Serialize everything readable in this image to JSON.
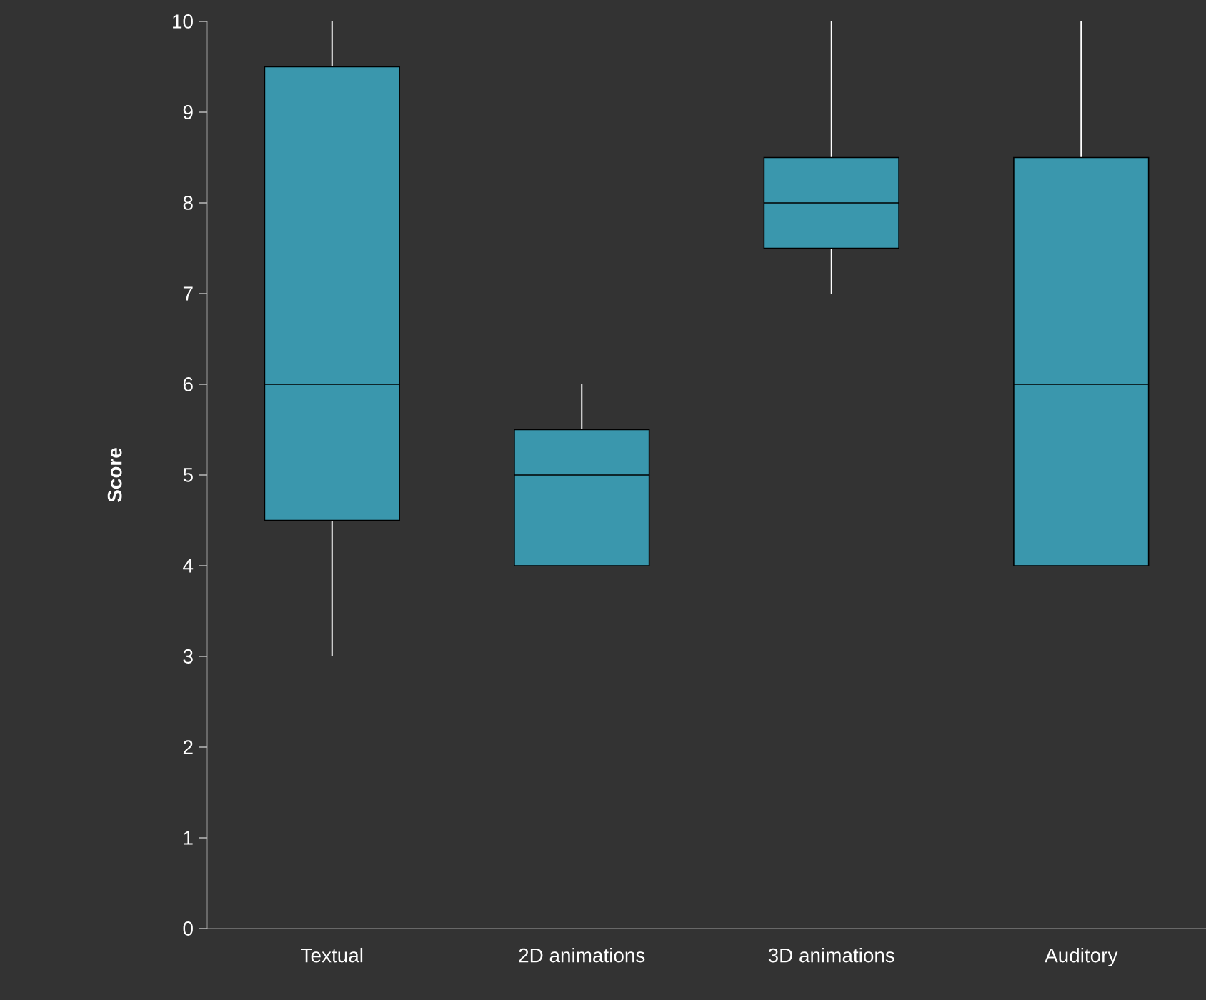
{
  "chart_data": {
    "type": "box",
    "ylabel": "Score",
    "categories": [
      "Textual",
      "2D animations",
      "3D animations",
      "Auditory"
    ],
    "boxes": [
      {
        "low": 3,
        "q1": 4.5,
        "median": 6,
        "q3": 9.5,
        "high": 10
      },
      {
        "low": 4,
        "q1": 4,
        "median": 5,
        "q3": 5.5,
        "high": 6
      },
      {
        "low": 7,
        "q1": 7.5,
        "median": 8,
        "q3": 8.5,
        "high": 10
      },
      {
        "low": 4,
        "q1": 4,
        "median": 6,
        "q3": 8.5,
        "high": 10
      }
    ],
    "color": "#3a97ad",
    "ylim": [
      0,
      10
    ],
    "yticks": [
      0,
      1,
      2,
      3,
      4,
      5,
      6,
      7,
      8,
      9,
      10
    ]
  }
}
